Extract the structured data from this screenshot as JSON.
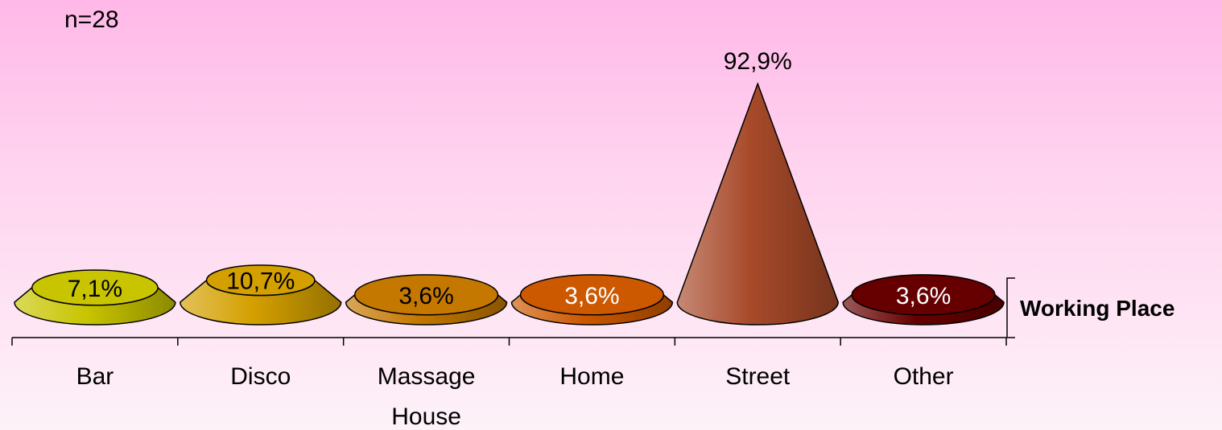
{
  "n_label": "n=28",
  "chart_data": {
    "type": "bar",
    "shape": "cone",
    "categories": [
      "Bar",
      "Disco",
      "Massage House",
      "Home",
      "Street",
      "Other"
    ],
    "category_lines": [
      [
        "Bar"
      ],
      [
        "Disco"
      ],
      [
        "Massage",
        "House"
      ],
      [
        "Home"
      ],
      [
        "Street"
      ],
      [
        "Other"
      ]
    ],
    "series": [
      {
        "name": "Working Place",
        "values": [
          7.1,
          10.7,
          3.6,
          3.6,
          92.9,
          3.6
        ],
        "labels": [
          "7,1%",
          "10,7%",
          "3,6%",
          "3,6%",
          "92,9%",
          "3,6%"
        ]
      }
    ],
    "colors": [
      "#c8c400",
      "#d4a000",
      "#c47800",
      "#cc5800",
      "#a84a2a",
      "#660000"
    ],
    "label_colors": [
      "#000000",
      "#000000",
      "#000000",
      "#ffffff",
      "#000000",
      "#ffffff"
    ],
    "ylim": [
      0,
      100
    ],
    "grid": false,
    "legend_position": "right"
  }
}
